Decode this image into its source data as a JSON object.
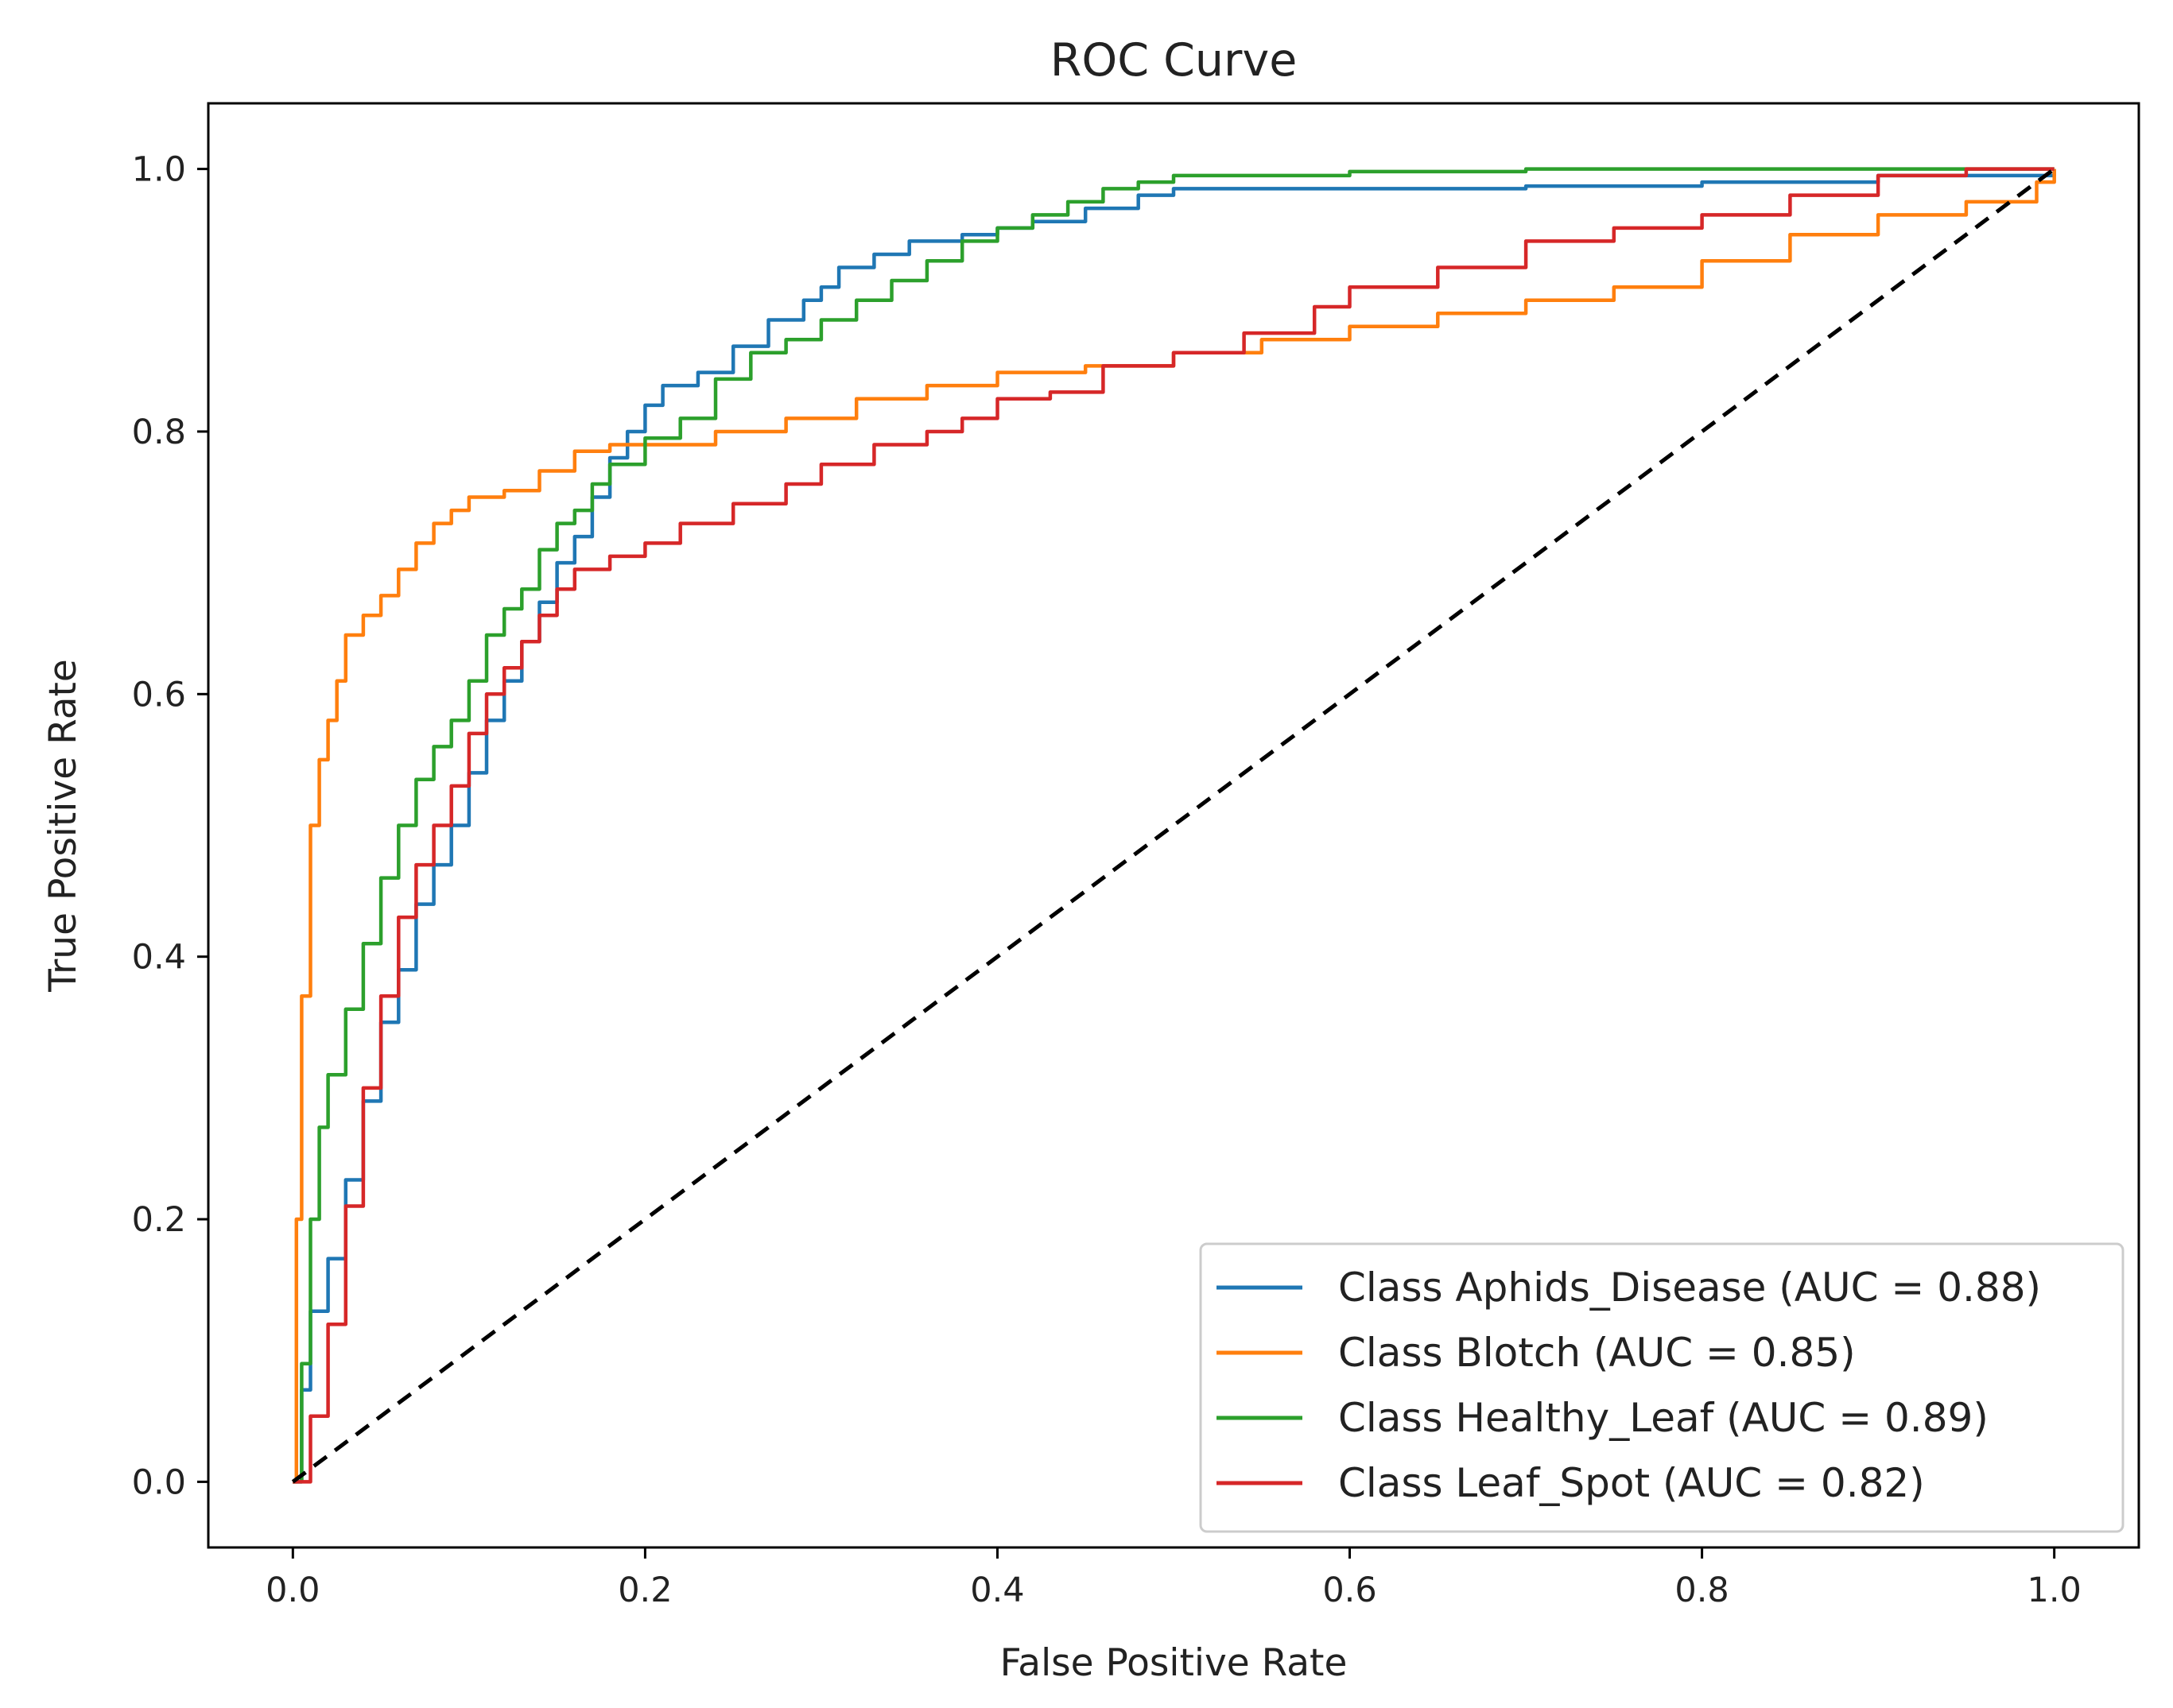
{
  "chart_data": {
    "type": "line",
    "title": "ROC Curve",
    "xlabel": "False Positive Rate",
    "ylabel": "True Positive Rate",
    "xlim": [
      -0.048,
      1.048
    ],
    "ylim": [
      -0.05,
      1.05
    ],
    "xticks": [
      0.0,
      0.2,
      0.4,
      0.6,
      0.8,
      1.0
    ],
    "yticks": [
      0.0,
      0.2,
      0.4,
      0.6,
      0.8,
      1.0
    ],
    "xtick_labels": [
      "0.0",
      "0.2",
      "0.4",
      "0.6",
      "0.8",
      "1.0"
    ],
    "ytick_labels": [
      "0.0",
      "0.2",
      "0.4",
      "0.6",
      "0.8",
      "1.0"
    ],
    "grid": false,
    "legend_position": "lower-right",
    "series": [
      {
        "name": "Class Aphids_Disease (AUC = 0.88)",
        "color": "#1f77b4",
        "points": [
          [
            0,
            0
          ],
          [
            0.005,
            0.07
          ],
          [
            0.01,
            0.13
          ],
          [
            0.02,
            0.17
          ],
          [
            0.03,
            0.23
          ],
          [
            0.04,
            0.29
          ],
          [
            0.05,
            0.35
          ],
          [
            0.06,
            0.39
          ],
          [
            0.07,
            0.44
          ],
          [
            0.08,
            0.47
          ],
          [
            0.09,
            0.5
          ],
          [
            0.1,
            0.54
          ],
          [
            0.11,
            0.58
          ],
          [
            0.12,
            0.61
          ],
          [
            0.13,
            0.64
          ],
          [
            0.14,
            0.67
          ],
          [
            0.15,
            0.7
          ],
          [
            0.16,
            0.72
          ],
          [
            0.17,
            0.75
          ],
          [
            0.18,
            0.78
          ],
          [
            0.19,
            0.8
          ],
          [
            0.2,
            0.82
          ],
          [
            0.21,
            0.835
          ],
          [
            0.23,
            0.845
          ],
          [
            0.25,
            0.865
          ],
          [
            0.27,
            0.885
          ],
          [
            0.29,
            0.9
          ],
          [
            0.3,
            0.91
          ],
          [
            0.31,
            0.925
          ],
          [
            0.33,
            0.935
          ],
          [
            0.35,
            0.945
          ],
          [
            0.38,
            0.95
          ],
          [
            0.4,
            0.955
          ],
          [
            0.42,
            0.96
          ],
          [
            0.45,
            0.97
          ],
          [
            0.48,
            0.98
          ],
          [
            0.5,
            0.985
          ],
          [
            0.6,
            0.985
          ],
          [
            0.7,
            0.987
          ],
          [
            0.8,
            0.99
          ],
          [
            0.9,
            0.995
          ],
          [
            1.0,
            1.0
          ]
        ]
      },
      {
        "name": "Class Blotch (AUC = 0.85)",
        "color": "#ff7f0e",
        "points": [
          [
            0,
            0
          ],
          [
            0.002,
            0.2
          ],
          [
            0.005,
            0.37
          ],
          [
            0.01,
            0.5
          ],
          [
            0.015,
            0.55
          ],
          [
            0.02,
            0.58
          ],
          [
            0.025,
            0.61
          ],
          [
            0.03,
            0.645
          ],
          [
            0.04,
            0.66
          ],
          [
            0.05,
            0.675
          ],
          [
            0.06,
            0.695
          ],
          [
            0.07,
            0.715
          ],
          [
            0.08,
            0.73
          ],
          [
            0.09,
            0.74
          ],
          [
            0.1,
            0.75
          ],
          [
            0.12,
            0.755
          ],
          [
            0.14,
            0.77
          ],
          [
            0.16,
            0.785
          ],
          [
            0.18,
            0.79
          ],
          [
            0.2,
            0.79
          ],
          [
            0.24,
            0.8
          ],
          [
            0.28,
            0.81
          ],
          [
            0.32,
            0.825
          ],
          [
            0.36,
            0.835
          ],
          [
            0.4,
            0.845
          ],
          [
            0.45,
            0.85
          ],
          [
            0.5,
            0.86
          ],
          [
            0.55,
            0.87
          ],
          [
            0.6,
            0.88
          ],
          [
            0.65,
            0.89
          ],
          [
            0.7,
            0.9
          ],
          [
            0.75,
            0.91
          ],
          [
            0.8,
            0.93
          ],
          [
            0.85,
            0.95
          ],
          [
            0.9,
            0.965
          ],
          [
            0.95,
            0.975
          ],
          [
            0.99,
            0.99
          ],
          [
            1.0,
            1.0
          ]
        ]
      },
      {
        "name": "Class Healthy_Leaf (AUC = 0.89)",
        "color": "#2ca02c",
        "points": [
          [
            0,
            0
          ],
          [
            0.005,
            0.09
          ],
          [
            0.01,
            0.2
          ],
          [
            0.015,
            0.27
          ],
          [
            0.02,
            0.31
          ],
          [
            0.03,
            0.36
          ],
          [
            0.04,
            0.41
          ],
          [
            0.05,
            0.46
          ],
          [
            0.06,
            0.5
          ],
          [
            0.07,
            0.535
          ],
          [
            0.08,
            0.56
          ],
          [
            0.09,
            0.58
          ],
          [
            0.1,
            0.61
          ],
          [
            0.11,
            0.645
          ],
          [
            0.12,
            0.665
          ],
          [
            0.13,
            0.68
          ],
          [
            0.14,
            0.71
          ],
          [
            0.15,
            0.73
          ],
          [
            0.16,
            0.74
          ],
          [
            0.17,
            0.76
          ],
          [
            0.18,
            0.775
          ],
          [
            0.2,
            0.795
          ],
          [
            0.22,
            0.81
          ],
          [
            0.24,
            0.84
          ],
          [
            0.26,
            0.86
          ],
          [
            0.28,
            0.87
          ],
          [
            0.3,
            0.885
          ],
          [
            0.32,
            0.9
          ],
          [
            0.34,
            0.915
          ],
          [
            0.36,
            0.93
          ],
          [
            0.38,
            0.945
          ],
          [
            0.4,
            0.955
          ],
          [
            0.42,
            0.965
          ],
          [
            0.44,
            0.975
          ],
          [
            0.46,
            0.985
          ],
          [
            0.48,
            0.99
          ],
          [
            0.5,
            0.995
          ],
          [
            0.6,
            0.998
          ],
          [
            0.7,
            1.0
          ],
          [
            1.0,
            1.0
          ]
        ]
      },
      {
        "name": "Class Leaf_Spot (AUC = 0.82)",
        "color": "#d62728",
        "points": [
          [
            0,
            0
          ],
          [
            0.01,
            0.05
          ],
          [
            0.02,
            0.12
          ],
          [
            0.03,
            0.21
          ],
          [
            0.04,
            0.3
          ],
          [
            0.05,
            0.37
          ],
          [
            0.06,
            0.43
          ],
          [
            0.07,
            0.47
          ],
          [
            0.08,
            0.5
          ],
          [
            0.09,
            0.53
          ],
          [
            0.1,
            0.57
          ],
          [
            0.11,
            0.6
          ],
          [
            0.12,
            0.62
          ],
          [
            0.13,
            0.64
          ],
          [
            0.14,
            0.66
          ],
          [
            0.15,
            0.68
          ],
          [
            0.16,
            0.695
          ],
          [
            0.18,
            0.705
          ],
          [
            0.2,
            0.715
          ],
          [
            0.22,
            0.73
          ],
          [
            0.25,
            0.745
          ],
          [
            0.28,
            0.76
          ],
          [
            0.3,
            0.775
          ],
          [
            0.33,
            0.79
          ],
          [
            0.36,
            0.8
          ],
          [
            0.38,
            0.81
          ],
          [
            0.4,
            0.825
          ],
          [
            0.43,
            0.83
          ],
          [
            0.46,
            0.85
          ],
          [
            0.5,
            0.86
          ],
          [
            0.54,
            0.875
          ],
          [
            0.58,
            0.895
          ],
          [
            0.6,
            0.91
          ],
          [
            0.65,
            0.925
          ],
          [
            0.7,
            0.945
          ],
          [
            0.75,
            0.955
          ],
          [
            0.8,
            0.965
          ],
          [
            0.85,
            0.98
          ],
          [
            0.9,
            0.995
          ],
          [
            0.95,
            1.0
          ],
          [
            1.0,
            1.0
          ]
        ]
      }
    ],
    "reference_line": {
      "name": "chance-diagonal",
      "color": "#000000",
      "points": [
        [
          0,
          0
        ],
        [
          1,
          1
        ]
      ]
    }
  }
}
